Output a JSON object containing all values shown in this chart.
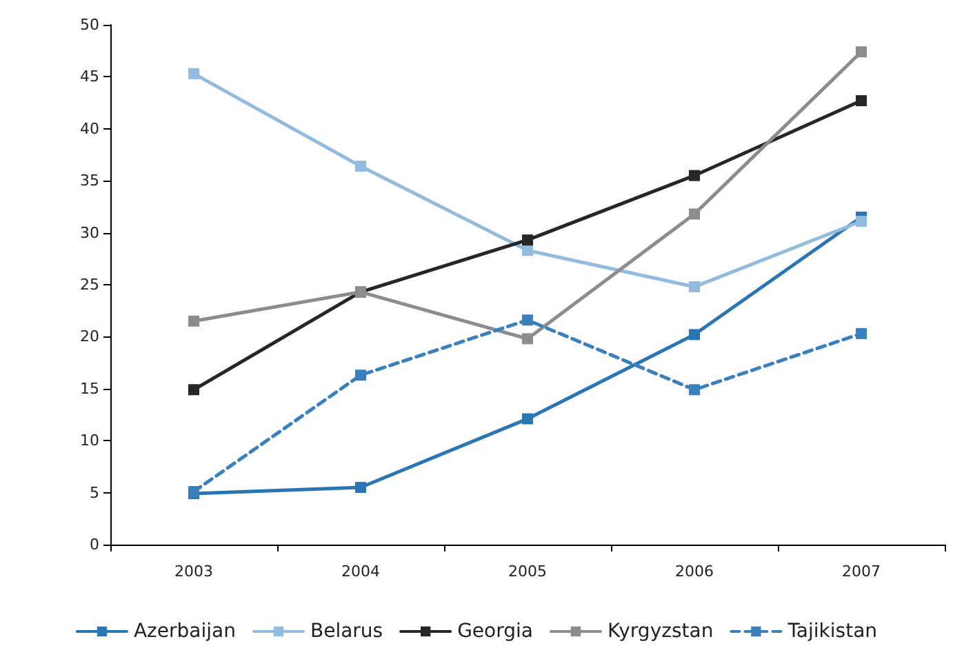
{
  "chart_data": {
    "type": "line",
    "categories": [
      "2003",
      "2004",
      "2005",
      "2006",
      "2007"
    ],
    "series": [
      {
        "name": "Azerbaijan",
        "color": "#2a75b3",
        "values": [
          4.9,
          5.5,
          12.1,
          20.2,
          31.5
        ]
      },
      {
        "name": "Belarus",
        "color": "#93bbdd",
        "values": [
          45.3,
          36.4,
          28.3,
          24.8,
          31.1
        ]
      },
      {
        "name": "Georgia",
        "color": "#262626",
        "values": [
          14.9,
          24.3,
          29.3,
          35.5,
          42.7
        ]
      },
      {
        "name": "Kyrgyzstan",
        "color": "#8c8c8f",
        "values": [
          21.5,
          24.3,
          19.8,
          31.8,
          47.4
        ]
      },
      {
        "name": "Tajikistan",
        "color": "#3a80bd",
        "values": [
          5.1,
          16.3,
          21.6,
          14.9,
          20.3
        ],
        "line_style": "dashed"
      }
    ],
    "ylim": [
      0,
      50
    ],
    "yticks": [
      0,
      5,
      10,
      15,
      20,
      25,
      30,
      35,
      40,
      45,
      50
    ],
    "grid": false,
    "legend": "bottom",
    "marker": "square",
    "line_style": "solid"
  }
}
